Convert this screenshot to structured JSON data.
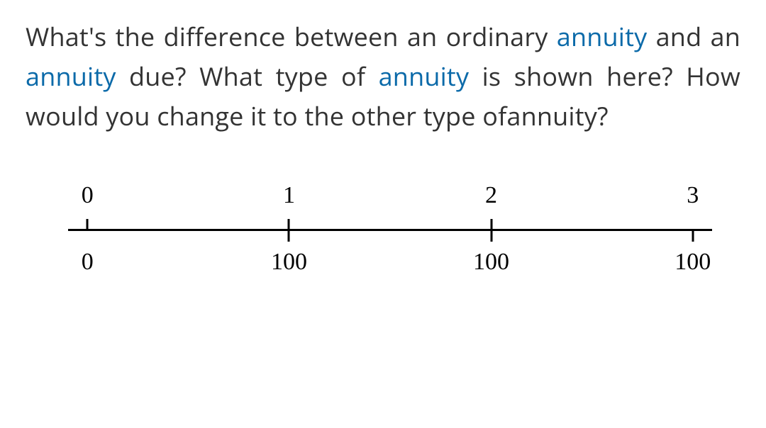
{
  "question": {
    "segments": [
      {
        "text": "What's the difference between an ordinary ",
        "link": false
      },
      {
        "text": "annuity",
        "link": true
      },
      {
        "text": " and an ",
        "link": false
      },
      {
        "text": "annuity",
        "link": true
      },
      {
        "text": " due? What type of ",
        "link": false
      },
      {
        "text": "annuity",
        "link": true
      },
      {
        "text": " is shown here? How would you change it to the other type ofannuity?",
        "link": false
      }
    ]
  },
  "timeline": {
    "points": [
      {
        "period": "0",
        "value": "0",
        "pct": 3,
        "tick": "left"
      },
      {
        "period": "1",
        "value": "100",
        "pct": 34.3,
        "tick": "full"
      },
      {
        "period": "2",
        "value": "100",
        "pct": 65.7,
        "tick": "full"
      },
      {
        "period": "3",
        "value": "100",
        "pct": 97,
        "tick": "right"
      }
    ]
  },
  "colors": {
    "text": "#333333",
    "link": "#0b6aa9",
    "axis": "#000000",
    "background": "#ffffff"
  }
}
